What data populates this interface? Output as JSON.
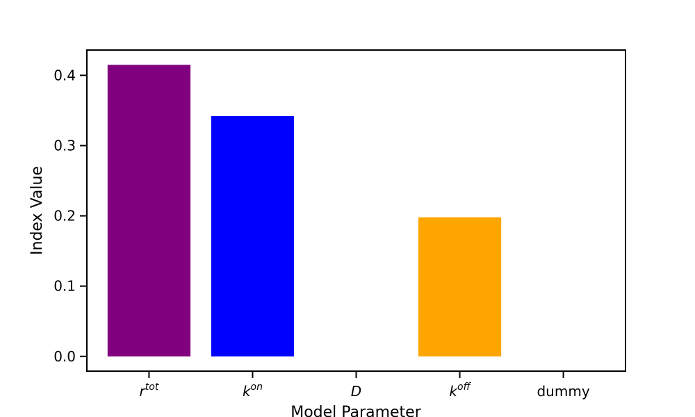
{
  "chart_data": {
    "type": "bar",
    "categories": [
      {
        "base": "r",
        "sup": "tot",
        "italic": true
      },
      {
        "base": "k",
        "sup": "on",
        "italic": true
      },
      {
        "base": "D",
        "sup": "",
        "italic": true
      },
      {
        "base": "k",
        "sup": "off",
        "italic": true
      },
      {
        "base": "dummy",
        "sup": "",
        "italic": false
      }
    ],
    "values": [
      0.415,
      0.342,
      0.0,
      0.198,
      0.0
    ],
    "colors": [
      "#800080",
      "#0000ff",
      "#ffffff",
      "#ffa500",
      "#ffffff"
    ],
    "xlabel": "Model Parameter",
    "ylabel": "Index Value",
    "ylim": [
      -0.021,
      0.436
    ],
    "yticks": [
      0.0,
      0.1,
      0.2,
      0.3,
      0.4
    ],
    "ytick_labels": [
      "0.0",
      "0.1",
      "0.2",
      "0.3",
      "0.4"
    ],
    "grid": false
  }
}
